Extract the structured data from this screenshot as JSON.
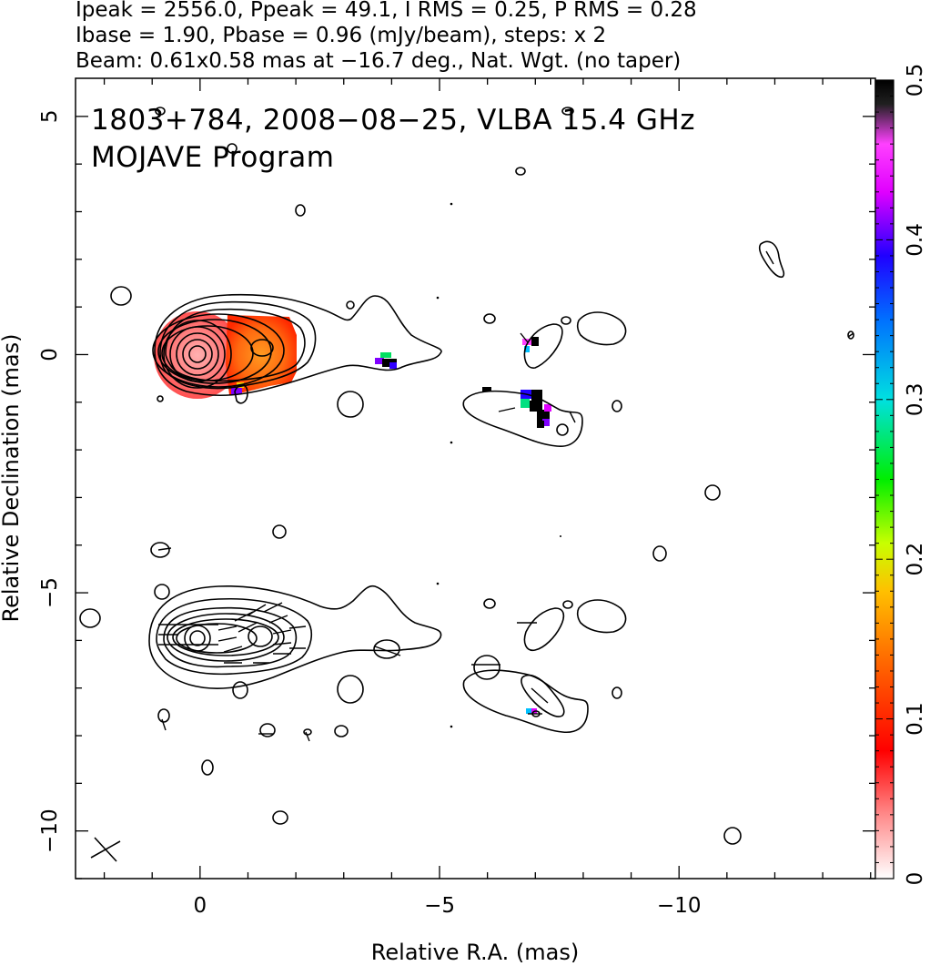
{
  "header": {
    "line1": "Ipeak = 2556.0, Ppeak = 49.1, I RMS = 0.25, P RMS = 0.28",
    "line2": "Ibase = 1.90, Pbase = 0.96 (mJy/beam), steps: x 2",
    "line3": "Beam: 0.61x0.58 mas at −16.7 deg., Nat. Wgt. (no taper)"
  },
  "plot_label": {
    "line1": "1803+784, 2008−08−25, VLBA 15.4 GHz",
    "line2": "MOJAVE Program"
  },
  "chart_data": {
    "type": "heatmap",
    "title": "1803+784, 2008−08−25, VLBA 15.4 GHz",
    "subtitle": "MOJAVE Program",
    "xlabel": "Relative R.A. (mas)",
    "ylabel": "Relative Declination (mas)",
    "xlim": [
      2.6,
      -14.1
    ],
    "ylim": [
      -11.0,
      5.8
    ],
    "x_ticks": [
      0,
      -5,
      -10
    ],
    "x_tick_labels": [
      "0",
      "−5",
      "−10"
    ],
    "y_ticks": [
      5,
      0,
      -5,
      -10
    ],
    "y_tick_labels": [
      "5",
      "0",
      "−5",
      "−10"
    ],
    "colorbar": {
      "range": [
        0,
        0.5
      ],
      "ticks": [
        0,
        0.1,
        0.2,
        0.3,
        0.4,
        0.5
      ],
      "tick_labels": [
        "0",
        "0.1",
        "0.2",
        "0.3",
        "0.4",
        "0.5"
      ],
      "colors": [
        "#ffffff",
        "#ff8a8a",
        "#ff0000",
        "#ff7000",
        "#ffc000",
        "#c8ff00",
        "#00ee00",
        "#00e0e0",
        "#0070ff",
        "#2000ff",
        "#e000ff",
        "#ff40ff",
        "#000000"
      ]
    },
    "top_panel": {
      "core": [
        0.0,
        0.0
      ],
      "knot": [
        -1.35,
        0.15
      ],
      "color_patches": [
        {
          "x": 0.0,
          "y": 0.05,
          "frac": 0.08
        },
        {
          "x": -1.3,
          "y": 0.15,
          "frac": 0.11
        },
        {
          "x": -4.0,
          "y": -0.1,
          "frac": 0.45
        },
        {
          "x": -7.2,
          "y": -1.1,
          "frac": 0.48
        },
        {
          "x": -7.0,
          "y": 0.2,
          "frac": 0.46
        }
      ]
    },
    "bottom_panel": {
      "core": [
        0.0,
        -6.0
      ],
      "knot": [
        -1.3,
        -5.9
      ],
      "vector_region_x": [
        -2.2,
        0.8
      ]
    },
    "beam": {
      "major_mas": 0.61,
      "minor_mas": 0.58,
      "pa_deg": -16.7
    },
    "grid": false
  }
}
